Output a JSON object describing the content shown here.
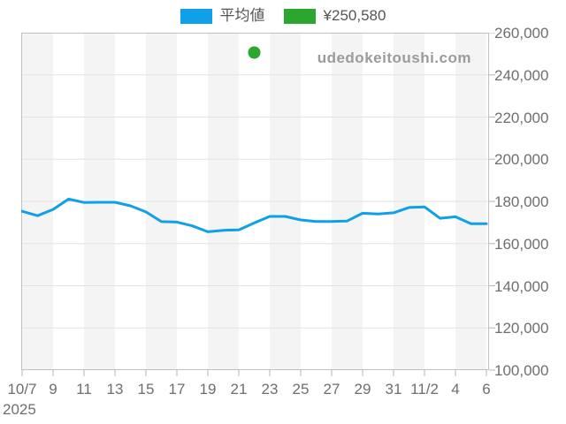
{
  "legend": {
    "items": [
      {
        "name": "average-price",
        "label": "平均値",
        "color": "#0FA0E8"
      },
      {
        "name": "sale-price",
        "label": "¥250,580",
        "color": "#2BA62E"
      }
    ]
  },
  "watermark": "udedokeitoushi.com",
  "x_axis": {
    "year": "2025"
  },
  "chart_data": {
    "type": "line",
    "title": "",
    "xlabel": "",
    "ylabel": "",
    "x": [
      "10/7",
      "10/8",
      "10/9",
      "10/10",
      "10/11",
      "10/12",
      "10/13",
      "10/14",
      "10/15",
      "10/16",
      "10/17",
      "10/18",
      "10/19",
      "10/20",
      "10/21",
      "10/22",
      "10/23",
      "10/24",
      "10/25",
      "10/26",
      "10/27",
      "10/28",
      "10/29",
      "10/30",
      "10/31",
      "11/1",
      "11/2",
      "11/3",
      "11/4",
      "11/5",
      "11/6"
    ],
    "series": [
      {
        "name": "平均値",
        "color": "#0FA0E8",
        "values": [
          175300,
          173200,
          176200,
          181100,
          179500,
          179600,
          179600,
          177900,
          175000,
          170400,
          170200,
          168400,
          165600,
          166300,
          166500,
          169800,
          172900,
          172900,
          171200,
          170500,
          170500,
          170700,
          174400,
          174000,
          174600,
          177100,
          177400,
          172000,
          172700,
          169400,
          169400
        ]
      }
    ],
    "markers": [
      {
        "x": "10/22",
        "value": 250580,
        "color": "#2BA62E",
        "label": "¥250,580"
      }
    ],
    "xtick_labels": [
      "10/7",
      "9",
      "11",
      "13",
      "15",
      "17",
      "19",
      "21",
      "23",
      "25",
      "27",
      "29",
      "31",
      "11/2",
      "4",
      "6"
    ],
    "ytick_labels": [
      "260,000",
      "240,000",
      "220,000",
      "200,000",
      "180,000",
      "160,000",
      "140,000",
      "120,000",
      "100,000"
    ],
    "ylim": [
      100000,
      260000
    ],
    "ytick_step": 20000,
    "grid": "horizontal-only",
    "legend_position": "top-center",
    "background": "alternating-vertical-bands",
    "band_color": "#f4f4f4",
    "grid_color": "#e2e2e2",
    "border_color": "#c0c0c0",
    "tick_color": "#b5b5b5"
  }
}
